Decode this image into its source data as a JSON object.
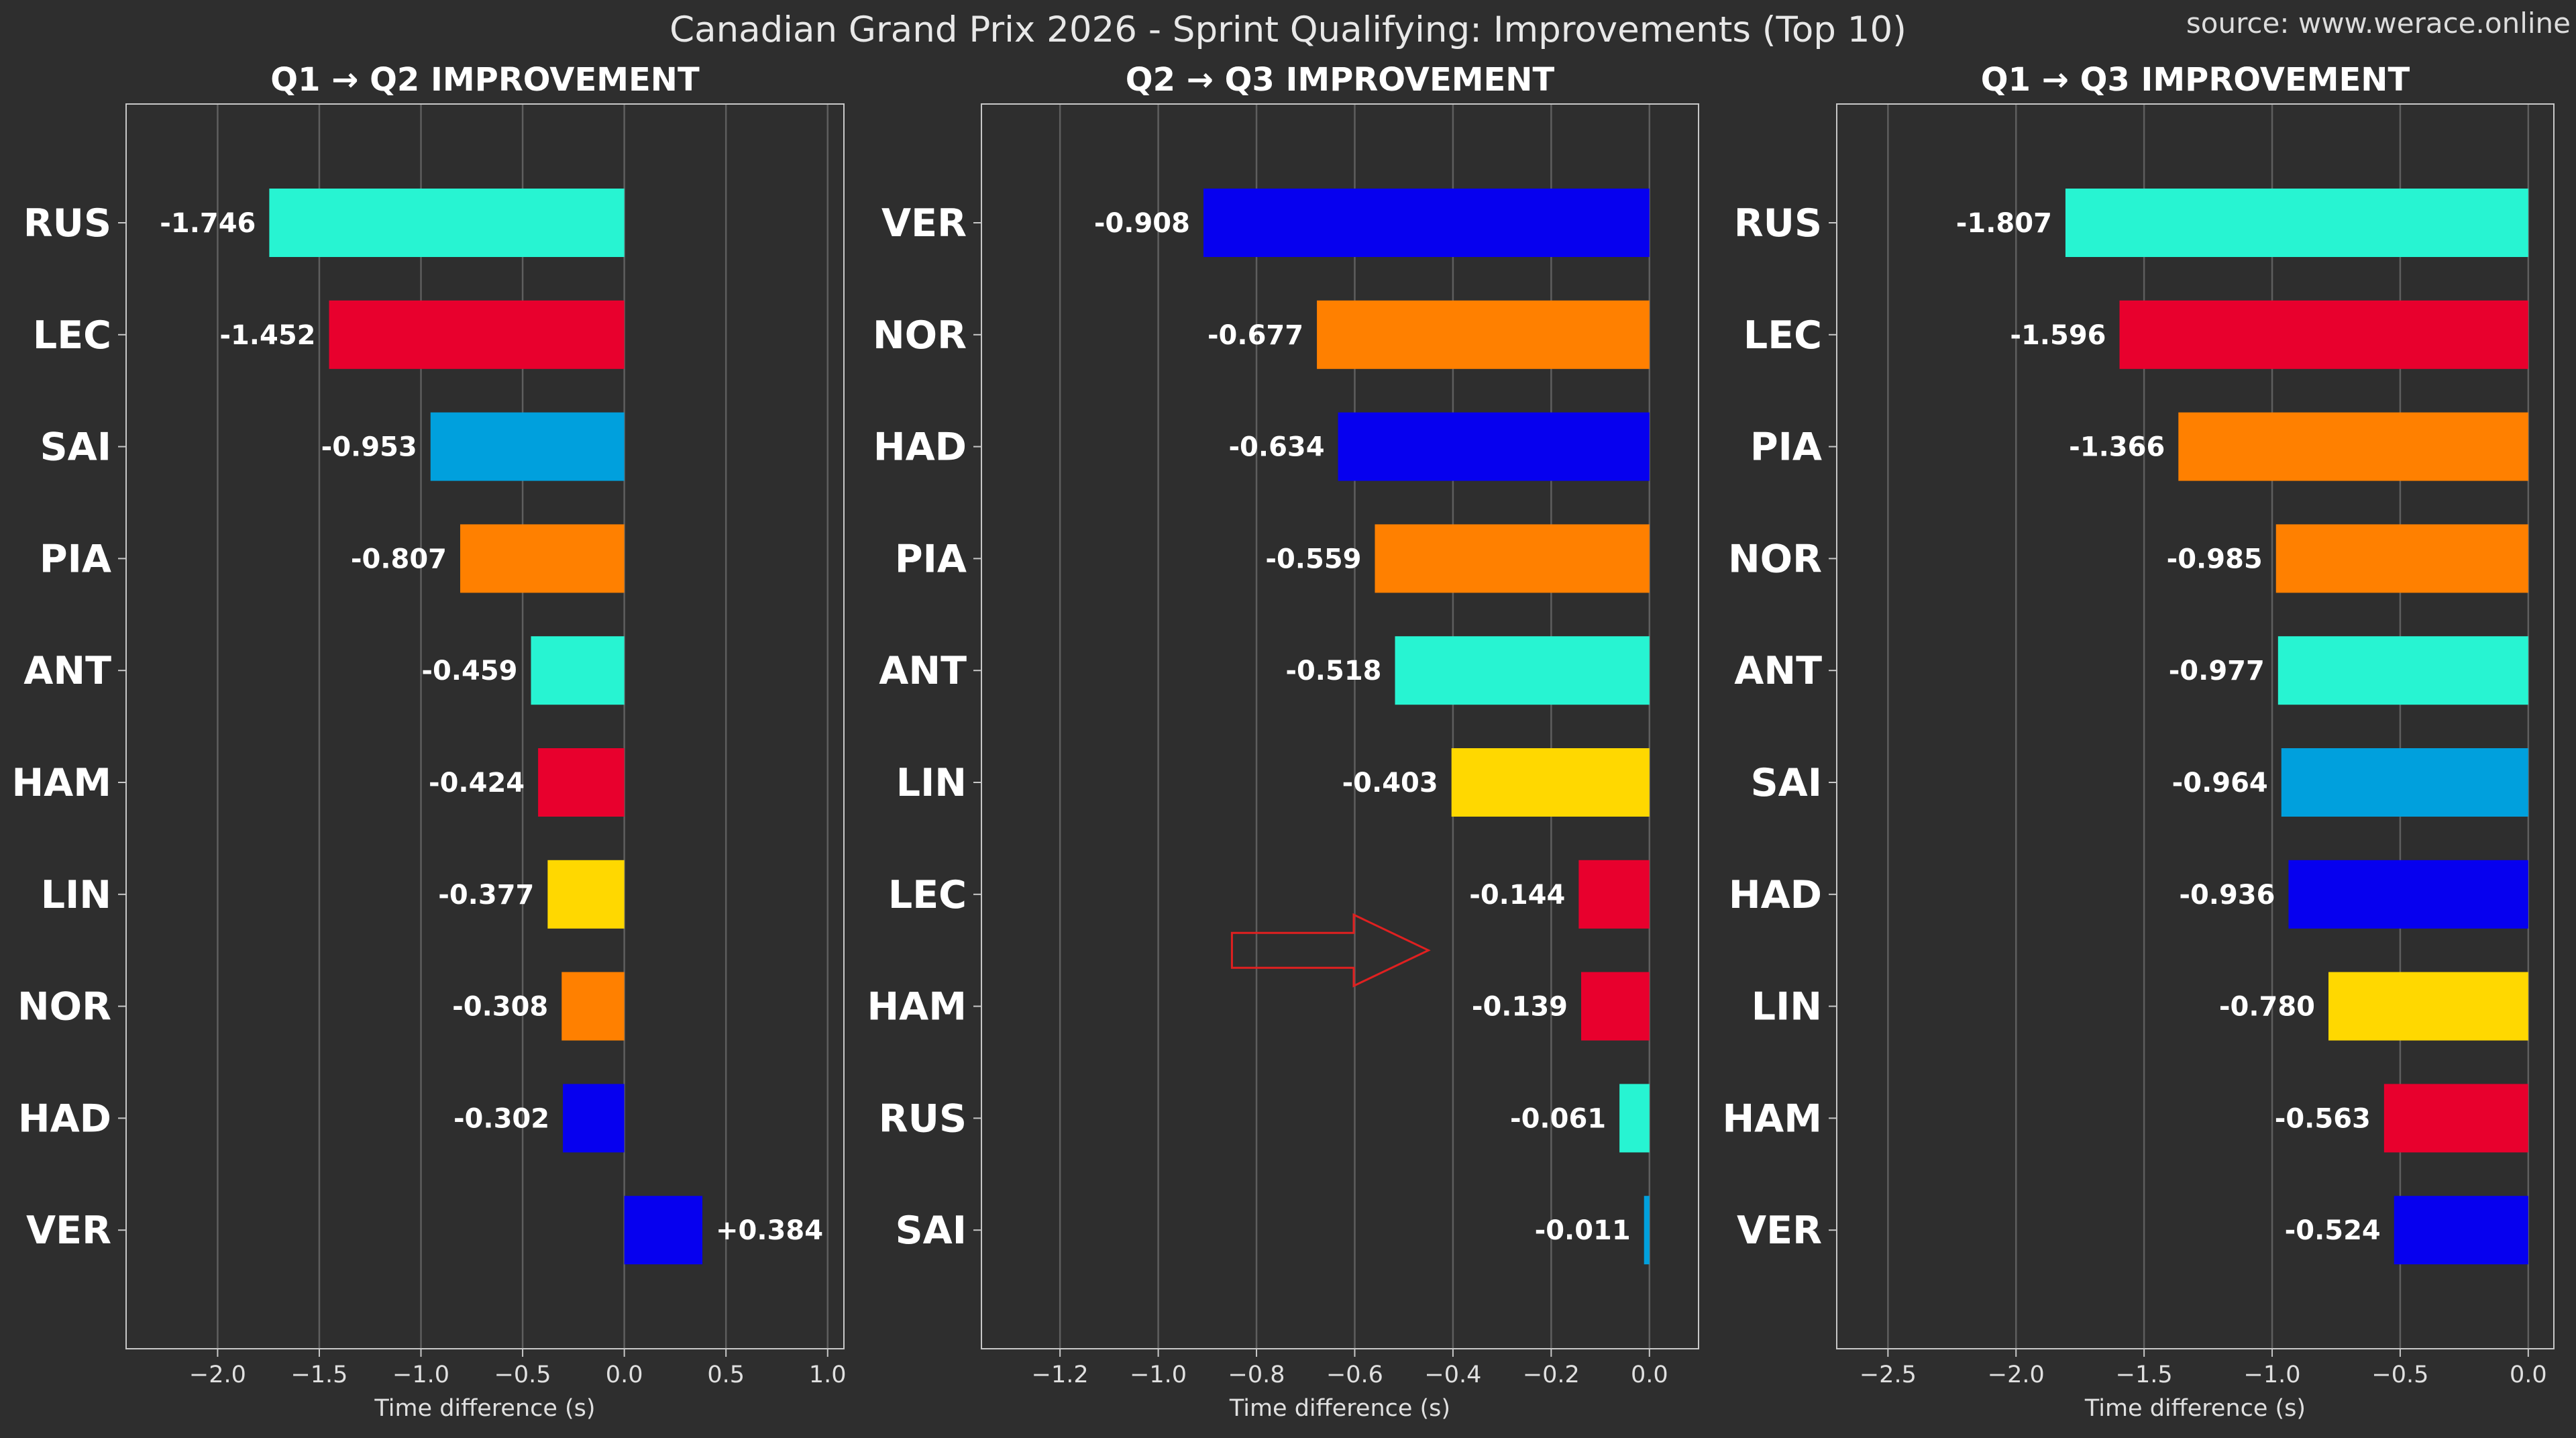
{
  "title": "Canadian Grand Prix 2026 - Sprint Qualifying: Improvements (Top 10)",
  "source": "source: www.werace.online",
  "colors": {
    "background": "#2e2e2e",
    "grid": "#5e5e5e",
    "spine": "#c8c8c8",
    "annotation_arrow": "#e02020"
  },
  "chart_data": [
    {
      "type": "bar",
      "orientation": "horizontal",
      "title": "Q1 → Q2 IMPROVEMENT",
      "xlabel": "Time difference (s)",
      "xlim": [
        -2.45,
        1.08
      ],
      "xticks": [
        -2.0,
        -1.5,
        -1.0,
        -0.5,
        0.0,
        0.5,
        1.0
      ],
      "xtick_labels": [
        "−2.0",
        "−1.5",
        "−1.0",
        "−0.5",
        "0.0",
        "0.5",
        "1.0"
      ],
      "grid": true,
      "categories": [
        "RUS",
        "LEC",
        "SAI",
        "PIA",
        "ANT",
        "HAM",
        "LIN",
        "NOR",
        "HAD",
        "VER"
      ],
      "values": [
        -1.746,
        -1.452,
        -0.953,
        -0.807,
        -0.459,
        -0.424,
        -0.377,
        -0.308,
        -0.302,
        0.384
      ],
      "labels": [
        "-1.746",
        "-1.452",
        "-0.953",
        "-0.807",
        "-0.459",
        "-0.424",
        "-0.377",
        "-0.308",
        "-0.302",
        "+0.384"
      ],
      "colors": [
        "#27f4d2",
        "#e8002d",
        "#00a0dd",
        "#ff8000",
        "#27f4d2",
        "#e8002d",
        "#ffd800",
        "#ff8000",
        "#0600ef",
        "#0600ef"
      ]
    },
    {
      "type": "bar",
      "orientation": "horizontal",
      "title": "Q2 → Q3 IMPROVEMENT",
      "xlabel": "Time difference (s)",
      "xlim": [
        -1.36,
        0.1
      ],
      "xticks": [
        -1.2,
        -1.0,
        -0.8,
        -0.6,
        -0.4,
        -0.2,
        0.0
      ],
      "xtick_labels": [
        "−1.2",
        "−1.0",
        "−0.8",
        "−0.6",
        "−0.4",
        "−0.2",
        "0.0"
      ],
      "grid": true,
      "categories": [
        "VER",
        "NOR",
        "HAD",
        "PIA",
        "ANT",
        "LIN",
        "LEC",
        "HAM",
        "RUS",
        "SAI"
      ],
      "values": [
        -0.908,
        -0.677,
        -0.634,
        -0.559,
        -0.518,
        -0.403,
        -0.144,
        -0.139,
        -0.061,
        -0.011
      ],
      "labels": [
        "-0.908",
        "-0.677",
        "-0.634",
        "-0.559",
        "-0.518",
        "-0.403",
        "-0.144",
        "-0.139",
        "-0.061",
        "-0.011"
      ],
      "colors": [
        "#0600ef",
        "#ff8000",
        "#0600ef",
        "#ff8000",
        "#27f4d2",
        "#ffd800",
        "#e8002d",
        "#e8002d",
        "#27f4d2",
        "#00a0dd"
      ],
      "annotation": {
        "type": "arrow",
        "direction": "right",
        "x_from": -0.85,
        "x_to": -0.45,
        "between_categories": [
          "LEC",
          "HAM"
        ]
      }
    },
    {
      "type": "bar",
      "orientation": "horizontal",
      "title": "Q1 → Q3 IMPROVEMENT",
      "xlabel": "Time difference (s)",
      "xlim": [
        -2.7,
        0.1
      ],
      "xticks": [
        -2.5,
        -2.0,
        -1.5,
        -1.0,
        -0.5,
        0.0
      ],
      "xtick_labels": [
        "−2.5",
        "−2.0",
        "−1.5",
        "−1.0",
        "−0.5",
        "0.0"
      ],
      "grid": true,
      "categories": [
        "RUS",
        "LEC",
        "PIA",
        "NOR",
        "ANT",
        "SAI",
        "HAD",
        "LIN",
        "HAM",
        "VER"
      ],
      "values": [
        -1.807,
        -1.596,
        -1.366,
        -0.985,
        -0.977,
        -0.964,
        -0.936,
        -0.78,
        -0.563,
        -0.524
      ],
      "labels": [
        "-1.807",
        "-1.596",
        "-1.366",
        "-0.985",
        "-0.977",
        "-0.964",
        "-0.936",
        "-0.780",
        "-0.563",
        "-0.524"
      ],
      "colors": [
        "#27f4d2",
        "#e8002d",
        "#ff8000",
        "#ff8000",
        "#27f4d2",
        "#00a0dd",
        "#0600ef",
        "#ffd800",
        "#e8002d",
        "#0600ef"
      ]
    }
  ]
}
